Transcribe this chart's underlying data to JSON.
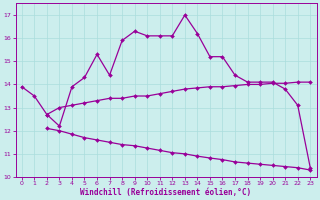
{
  "x_values": [
    0,
    1,
    2,
    3,
    4,
    5,
    6,
    7,
    8,
    9,
    10,
    11,
    12,
    13,
    14,
    15,
    16,
    17,
    18,
    19,
    20,
    21,
    22,
    23
  ],
  "line1": [
    13.9,
    13.5,
    12.7,
    12.2,
    13.9,
    14.3,
    15.3,
    14.4,
    15.9,
    16.3,
    16.1,
    16.1,
    16.1,
    17.0,
    16.2,
    15.2,
    15.2,
    14.4,
    14.1,
    14.1,
    14.1,
    13.8,
    13.1,
    10.4
  ],
  "line2": [
    null,
    null,
    12.7,
    13.0,
    13.1,
    13.2,
    13.3,
    13.4,
    13.4,
    13.5,
    13.5,
    13.6,
    13.7,
    13.8,
    13.85,
    13.9,
    13.9,
    13.95,
    14.0,
    14.0,
    14.05,
    14.05,
    14.1,
    14.1
  ],
  "line3": [
    null,
    null,
    12.1,
    12.0,
    11.85,
    11.7,
    11.6,
    11.5,
    11.4,
    11.35,
    11.25,
    11.15,
    11.05,
    11.0,
    10.9,
    10.82,
    10.75,
    10.65,
    10.6,
    10.55,
    10.5,
    10.45,
    10.4,
    10.3
  ],
  "color": "#990099",
  "bg_color": "#cceeed",
  "grid_color": "#aadddd",
  "xlabel": "Windchill (Refroidissement éolien,°C)",
  "ylim": [
    10,
    17.5
  ],
  "xlim": [
    -0.5,
    23.5
  ],
  "yticks": [
    10,
    11,
    12,
    13,
    14,
    15,
    16,
    17
  ],
  "xticks": [
    0,
    1,
    2,
    3,
    4,
    5,
    6,
    7,
    8,
    9,
    10,
    11,
    12,
    13,
    14,
    15,
    16,
    17,
    18,
    19,
    20,
    21,
    22,
    23
  ]
}
